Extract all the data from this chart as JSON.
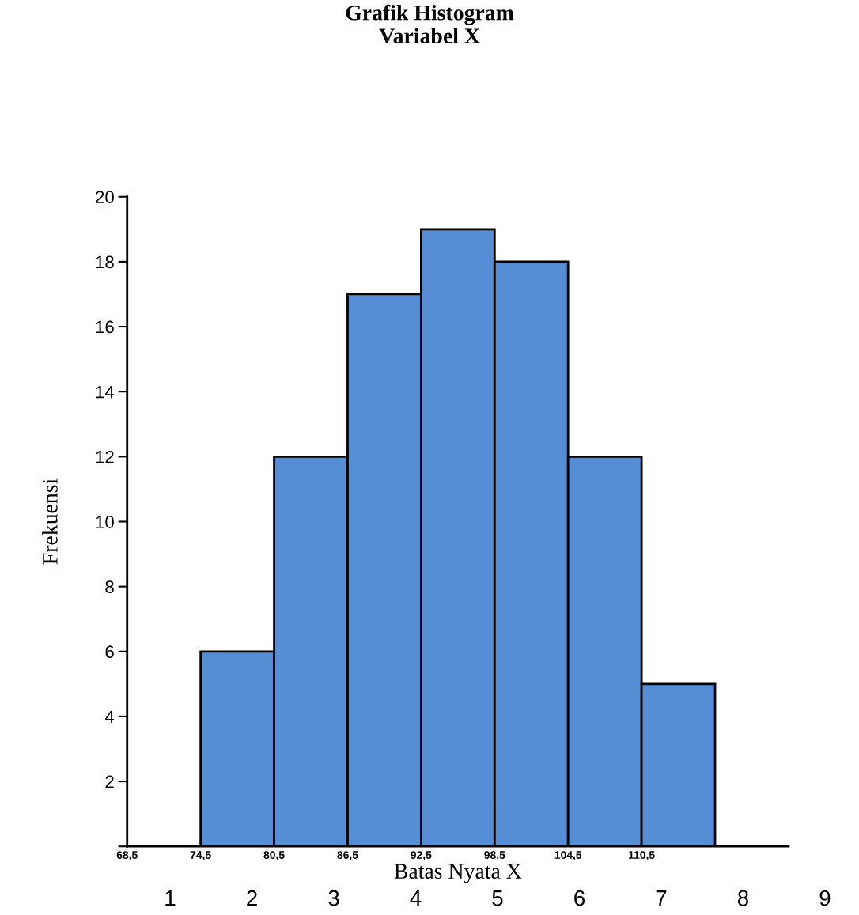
{
  "chart_data": {
    "type": "histogram",
    "title": "Grafik Histogram\nVariabel X",
    "xlabel": "Batas Nyata X",
    "ylabel": "Frekuensi",
    "bins": [
      74.5,
      80.5,
      86.5,
      92.5,
      98.5,
      104.5,
      110.5,
      116.5
    ],
    "values": [
      6,
      12,
      17,
      19,
      18,
      12,
      5
    ],
    "color": "#558ed5",
    "xlim": [
      68.5,
      122.5
    ],
    "xticks": [
      {
        "value": 68.5,
        "label": "68,5"
      },
      {
        "value": 74.5,
        "label": "74,5"
      },
      {
        "value": 80.5,
        "label": "80,5"
      },
      {
        "value": 86.5,
        "label": "86,5"
      },
      {
        "value": 92.5,
        "label": "92,5"
      },
      {
        "value": 98.5,
        "label": "98,5"
      },
      {
        "value": 104.5,
        "label": "104,5"
      },
      {
        "value": 110.5,
        "label": "110,5"
      }
    ],
    "ylim": [
      0,
      20
    ],
    "yticks": [
      {
        "value": 0,
        "label": null
      },
      2,
      4,
      6,
      8,
      10,
      12,
      14,
      16,
      18,
      20
    ],
    "grid": false,
    "legend": false,
    "annotations": [
      "1",
      "2",
      "3",
      "4",
      "5",
      "6",
      "7",
      "8",
      "9"
    ]
  }
}
